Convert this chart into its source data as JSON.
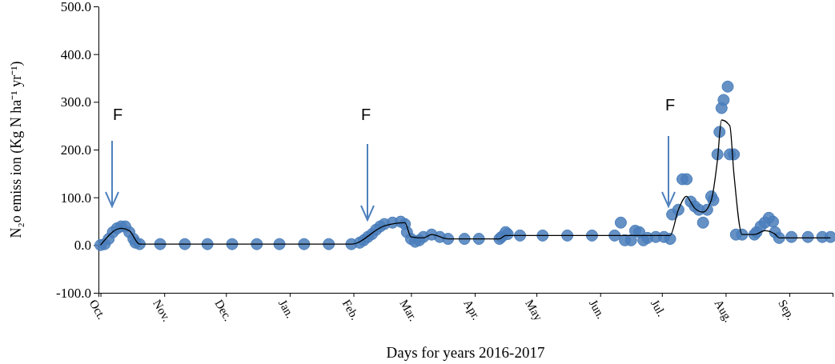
{
  "chart_data": {
    "type": "scatter",
    "xlabel": "Days for years 2016-2017",
    "ylabel": "N₂o emiss ion (Kg N ha⁻¹ yr⁻¹)",
    "xlim": [
      "2016-09-30",
      "2017-09-22"
    ],
    "xticks": [
      {
        "value": "2016-10-01",
        "label": "Oct."
      },
      {
        "value": "2016-11-01",
        "label": "Nov."
      },
      {
        "value": "2016-12-01",
        "label": "Dec."
      },
      {
        "value": "2017-01-01",
        "label": "Jan."
      },
      {
        "value": "2017-02-01",
        "label": "Feb."
      },
      {
        "value": "2017-03-01",
        "label": "Mar."
      },
      {
        "value": "2017-04-01",
        "label": "Apr."
      },
      {
        "value": "2017-05-01",
        "label": "May"
      },
      {
        "value": "2017-06-01",
        "label": "Jun."
      },
      {
        "value": "2017-07-01",
        "label": "Jul."
      },
      {
        "value": "2017-08-01",
        "label": "Aug."
      },
      {
        "value": "2017-09-01",
        "label": "Sep."
      }
    ],
    "ylim": [
      -100,
      500
    ],
    "yticks": [
      {
        "value": -100,
        "label": "-100.0"
      },
      {
        "value": 0,
        "label": "0.0"
      },
      {
        "value": 100,
        "label": "100.0"
      },
      {
        "value": 200,
        "label": "200.0"
      },
      {
        "value": 300,
        "label": "300.0"
      },
      {
        "value": 400,
        "label": "400.0"
      },
      {
        "value": 500,
        "label": "500.0"
      }
    ],
    "grid": false,
    "legend": false,
    "series": [
      {
        "type": "scatter",
        "marker": "circle",
        "color": "#4a7ebb",
        "x": [
          "2016-10-01",
          "2016-10-03",
          "2016-10-05",
          "2016-10-07",
          "2016-10-09",
          "2016-10-11",
          "2016-10-13",
          "2016-10-15",
          "2016-10-17",
          "2016-10-18",
          "2016-10-20",
          "2016-10-30",
          "2016-11-11",
          "2016-11-22",
          "2016-12-04",
          "2016-12-16",
          "2016-12-27",
          "2017-01-08",
          "2017-01-20",
          "2017-01-31",
          "2017-02-04",
          "2017-02-06",
          "2017-02-08",
          "2017-02-10",
          "2017-02-12",
          "2017-02-14",
          "2017-02-16",
          "2017-02-20",
          "2017-02-24",
          "2017-02-26",
          "2017-02-27",
          "2017-03-01",
          "2017-03-03",
          "2017-03-05",
          "2017-03-07",
          "2017-03-11",
          "2017-03-15",
          "2017-03-19",
          "2017-03-27",
          "2017-04-03",
          "2017-04-13",
          "2017-04-14",
          "2017-04-16",
          "2017-04-17",
          "2017-04-23",
          "2017-05-04",
          "2017-05-16",
          "2017-05-28",
          "2017-06-08",
          "2017-06-11",
          "2017-06-13",
          "2017-06-16",
          "2017-06-18",
          "2017-06-20",
          "2017-06-22",
          "2017-06-24",
          "2017-06-28",
          "2017-07-02",
          "2017-07-05",
          "2017-07-06",
          "2017-07-09",
          "2017-07-11",
          "2017-07-13",
          "2017-07-15",
          "2017-07-17",
          "2017-07-19",
          "2017-07-21",
          "2017-07-23",
          "2017-07-25",
          "2017-07-26",
          "2017-07-28",
          "2017-07-29",
          "2017-07-30",
          "2017-07-31",
          "2017-08-02",
          "2017-08-03",
          "2017-08-05",
          "2017-08-06",
          "2017-08-09",
          "2017-08-15",
          "2017-08-16",
          "2017-08-18",
          "2017-08-20",
          "2017-08-22",
          "2017-08-24",
          "2017-08-25",
          "2017-08-27",
          "2017-09-02",
          "2017-09-10",
          "2017-09-17",
          "2017-09-21"
        ],
        "values": [
          0,
          2,
          13,
          27,
          35,
          39,
          39,
          27,
          13,
          5,
          2,
          2,
          2,
          2,
          2,
          2,
          2,
          2,
          2,
          2,
          5,
          10,
          17,
          23,
          32,
          39,
          44,
          47,
          49,
          44,
          27,
          13,
          7,
          10,
          17,
          22,
          17,
          13,
          13,
          13,
          13,
          17,
          27,
          23,
          20,
          20,
          20,
          20,
          20,
          47,
          10,
          10,
          30,
          27,
          10,
          15,
          17,
          17,
          13,
          64,
          74,
          138,
          138,
          91,
          81,
          74,
          47,
          74,
          102,
          94,
          190,
          237,
          287,
          304,
          332,
          190,
          190,
          22,
          22,
          22,
          27,
          39,
          47,
          57,
          49,
          27,
          15,
          17,
          17,
          17,
          17
        ]
      },
      {
        "type": "line",
        "marker": "none",
        "line_style": "solid",
        "color": "#000000",
        "x": [
          "2016-10-01",
          "2016-10-11",
          "2016-10-15",
          "2016-10-20",
          "2017-01-31",
          "2017-02-16",
          "2017-02-26",
          "2017-03-01",
          "2017-03-07",
          "2017-03-11",
          "2017-03-19",
          "2017-04-13",
          "2017-04-16",
          "2017-06-08",
          "2017-07-05",
          "2017-07-09",
          "2017-07-13",
          "2017-07-15",
          "2017-07-17",
          "2017-07-21",
          "2017-07-25",
          "2017-07-28",
          "2017-07-30",
          "2017-08-03",
          "2017-08-05",
          "2017-08-09",
          "2017-08-15",
          "2017-08-20",
          "2017-08-25",
          "2017-08-27",
          "2017-09-21"
        ],
        "values": [
          0,
          35,
          30,
          2,
          2,
          40,
          47,
          17,
          15,
          22,
          13,
          13,
          20,
          20,
          20,
          74,
          102,
          90,
          77,
          69,
          94,
          178,
          262,
          250,
          150,
          22,
          22,
          30,
          23,
          15,
          15
        ]
      }
    ],
    "annotations": [
      "F",
      "F",
      "F"
    ]
  }
}
